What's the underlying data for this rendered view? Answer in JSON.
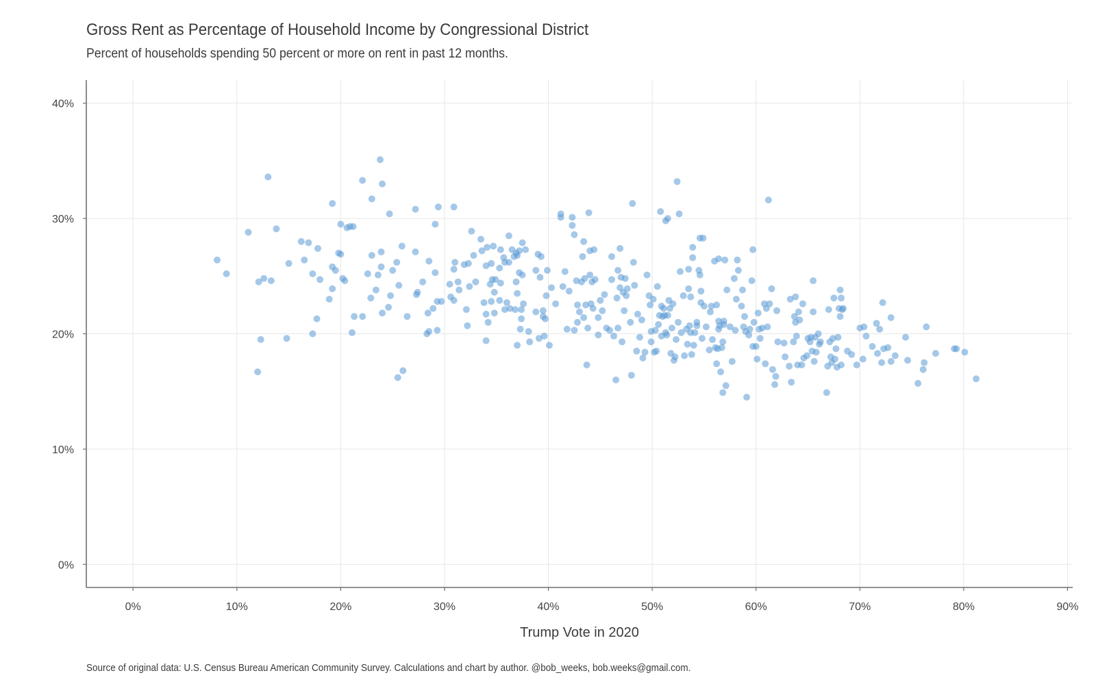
{
  "chart_data": {
    "type": "scatter",
    "title": "Gross Rent as Percentage of Household Income by Congressional District",
    "subtitle": "Percent of households spending 50 percent or more on rent in past 12 months.",
    "xlabel": "Trump Vote in 2020",
    "ylabel": "",
    "caption": "Source of original data: U.S. Census Bureau American Community Survey. Calculations and chart by author. @bob_weeks, bob.weeks@gmail.com.",
    "xlim": [
      -4.5,
      90.5
    ],
    "ylim": [
      -2,
      42
    ],
    "x_ticks": [
      0,
      10,
      20,
      30,
      40,
      50,
      60,
      70,
      80,
      90
    ],
    "x_tick_labels": [
      "0%",
      "10%",
      "20%",
      "30%",
      "40%",
      "50%",
      "60%",
      "70%",
      "80%",
      "90%"
    ],
    "y_ticks": [
      0,
      10,
      20,
      30,
      40
    ],
    "y_tick_labels": [
      "0%",
      "10%",
      "20%",
      "30%",
      "40%"
    ],
    "grid": true,
    "point_color": "#5b9bd5",
    "points": [
      [
        8.1,
        26.4
      ],
      [
        9.0,
        25.2
      ],
      [
        11.1,
        28.8
      ],
      [
        12.0,
        16.7
      ],
      [
        12.3,
        19.5
      ],
      [
        12.1,
        24.5
      ],
      [
        12.6,
        24.8
      ],
      [
        13.0,
        33.6
      ],
      [
        13.3,
        24.6
      ],
      [
        13.8,
        29.1
      ],
      [
        14.8,
        19.6
      ],
      [
        15.0,
        26.1
      ],
      [
        16.2,
        28.0
      ],
      [
        16.5,
        26.4
      ],
      [
        16.9,
        27.9
      ],
      [
        17.3,
        25.2
      ],
      [
        17.3,
        20.0
      ],
      [
        17.7,
        21.3
      ],
      [
        17.8,
        27.4
      ],
      [
        18.0,
        24.7
      ],
      [
        18.9,
        23.0
      ],
      [
        19.2,
        31.3
      ],
      [
        19.2,
        23.9
      ],
      [
        19.2,
        25.8
      ],
      [
        19.5,
        25.5
      ],
      [
        19.8,
        27.0
      ],
      [
        20.0,
        29.5
      ],
      [
        20.0,
        26.9
      ],
      [
        20.2,
        24.8
      ],
      [
        20.4,
        24.6
      ],
      [
        20.6,
        29.2
      ],
      [
        20.9,
        29.3
      ],
      [
        21.2,
        29.3
      ],
      [
        21.1,
        20.1
      ],
      [
        21.3,
        21.5
      ],
      [
        22.1,
        33.3
      ],
      [
        22.1,
        21.5
      ],
      [
        22.6,
        25.2
      ],
      [
        22.9,
        23.1
      ],
      [
        23.0,
        31.7
      ],
      [
        23.0,
        26.8
      ],
      [
        23.4,
        23.8
      ],
      [
        23.6,
        25.1
      ],
      [
        23.8,
        35.1
      ],
      [
        23.9,
        27.1
      ],
      [
        23.9,
        25.8
      ],
      [
        24.0,
        21.8
      ],
      [
        24.0,
        33.0
      ],
      [
        24.6,
        22.3
      ],
      [
        24.7,
        30.4
      ],
      [
        24.8,
        23.3
      ],
      [
        25.0,
        25.5
      ],
      [
        25.4,
        26.2
      ],
      [
        25.6,
        24.2
      ],
      [
        25.5,
        16.2
      ],
      [
        25.9,
        27.6
      ],
      [
        26.0,
        16.8
      ],
      [
        26.4,
        21.5
      ],
      [
        27.2,
        27.1
      ],
      [
        27.2,
        30.8
      ],
      [
        27.3,
        23.4
      ],
      [
        27.4,
        23.6
      ],
      [
        27.9,
        24.5
      ],
      [
        28.3,
        20.0
      ],
      [
        28.4,
        21.8
      ],
      [
        28.5,
        20.2
      ],
      [
        28.5,
        26.3
      ],
      [
        28.9,
        22.2
      ],
      [
        29.1,
        29.5
      ],
      [
        29.1,
        25.3
      ],
      [
        29.3,
        22.8
      ],
      [
        29.3,
        20.3
      ],
      [
        29.4,
        31.0
      ],
      [
        29.7,
        22.8
      ],
      [
        30.5,
        24.3
      ],
      [
        30.6,
        23.2
      ],
      [
        30.9,
        25.6
      ],
      [
        30.9,
        22.9
      ],
      [
        30.9,
        31.0
      ],
      [
        31.0,
        26.2
      ],
      [
        31.3,
        24.5
      ],
      [
        31.4,
        23.8
      ],
      [
        31.9,
        26.0
      ],
      [
        32.1,
        22.1
      ],
      [
        32.2,
        20.7
      ],
      [
        32.3,
        26.1
      ],
      [
        32.4,
        24.1
      ],
      [
        32.6,
        28.9
      ],
      [
        32.8,
        26.8
      ],
      [
        33.0,
        24.5
      ],
      [
        33.5,
        28.2
      ],
      [
        33.6,
        27.2
      ],
      [
        33.8,
        22.7
      ],
      [
        34.0,
        25.9
      ],
      [
        34.0,
        21.7
      ],
      [
        34.0,
        19.4
      ],
      [
        34.1,
        27.5
      ],
      [
        34.2,
        21.0
      ],
      [
        34.4,
        24.3
      ],
      [
        34.5,
        26.1
      ],
      [
        34.5,
        22.8
      ],
      [
        34.6,
        24.7
      ],
      [
        34.7,
        27.6
      ],
      [
        34.8,
        23.6
      ],
      [
        34.8,
        21.8
      ],
      [
        34.9,
        24.7
      ],
      [
        35.3,
        22.9
      ],
      [
        35.3,
        25.7
      ],
      [
        35.4,
        27.3
      ],
      [
        35.4,
        24.4
      ],
      [
        35.7,
        26.6
      ],
      [
        35.8,
        22.1
      ],
      [
        35.8,
        26.2
      ],
      [
        36.0,
        22.7
      ],
      [
        36.2,
        28.5
      ],
      [
        36.2,
        26.2
      ],
      [
        36.3,
        22.2
      ],
      [
        36.5,
        27.3
      ],
      [
        36.7,
        26.7
      ],
      [
        36.8,
        22.1
      ],
      [
        36.9,
        27.0
      ],
      [
        36.9,
        24.5
      ],
      [
        37.0,
        26.8
      ],
      [
        37.0,
        23.5
      ],
      [
        37.0,
        19.0
      ],
      [
        37.2,
        27.2
      ],
      [
        37.2,
        25.3
      ],
      [
        37.3,
        20.4
      ],
      [
        37.4,
        22.1
      ],
      [
        37.4,
        21.3
      ],
      [
        37.5,
        25.1
      ],
      [
        37.5,
        27.9
      ],
      [
        37.6,
        22.6
      ],
      [
        37.8,
        27.3
      ],
      [
        38.1,
        20.2
      ],
      [
        38.2,
        19.3
      ],
      [
        38.8,
        21.9
      ],
      [
        38.8,
        25.5
      ],
      [
        39.0,
        26.9
      ],
      [
        39.1,
        19.6
      ],
      [
        39.2,
        24.9
      ],
      [
        39.3,
        26.7
      ],
      [
        39.5,
        22.0
      ],
      [
        39.5,
        21.5
      ],
      [
        39.6,
        19.8
      ],
      [
        39.7,
        21.3
      ],
      [
        39.8,
        23.3
      ],
      [
        39.9,
        25.5
      ],
      [
        40.1,
        19.0
      ],
      [
        40.3,
        24.0
      ],
      [
        40.7,
        22.6
      ],
      [
        41.2,
        30.4
      ],
      [
        41.2,
        30.1
      ],
      [
        41.4,
        24.1
      ],
      [
        41.6,
        25.4
      ],
      [
        41.8,
        20.4
      ],
      [
        42.0,
        23.7
      ],
      [
        42.3,
        30.1
      ],
      [
        42.3,
        29.4
      ],
      [
        42.5,
        28.6
      ],
      [
        42.5,
        20.3
      ],
      [
        42.7,
        24.6
      ],
      [
        42.8,
        21.0
      ],
      [
        42.8,
        22.5
      ],
      [
        43.0,
        21.9
      ],
      [
        43.2,
        24.5
      ],
      [
        43.3,
        26.7
      ],
      [
        43.4,
        28.0
      ],
      [
        43.4,
        21.4
      ],
      [
        43.5,
        24.8
      ],
      [
        43.6,
        22.5
      ],
      [
        43.7,
        17.3
      ],
      [
        43.8,
        20.5
      ],
      [
        43.9,
        30.5
      ],
      [
        44.0,
        27.2
      ],
      [
        44.0,
        25.1
      ],
      [
        44.1,
        22.6
      ],
      [
        44.2,
        24.5
      ],
      [
        44.3,
        22.2
      ],
      [
        44.4,
        27.3
      ],
      [
        44.5,
        24.7
      ],
      [
        44.8,
        19.9
      ],
      [
        44.8,
        21.4
      ],
      [
        45.0,
        22.9
      ],
      [
        45.2,
        22.0
      ],
      [
        45.4,
        23.4
      ],
      [
        45.6,
        20.5
      ],
      [
        45.9,
        20.3
      ],
      [
        46.1,
        26.7
      ],
      [
        46.1,
        24.7
      ],
      [
        46.3,
        19.8
      ],
      [
        46.5,
        16.0
      ],
      [
        46.6,
        23.1
      ],
      [
        46.7,
        25.5
      ],
      [
        46.7,
        20.5
      ],
      [
        46.9,
        24.0
      ],
      [
        46.9,
        27.4
      ],
      [
        47.0,
        24.9
      ],
      [
        47.2,
        23.6
      ],
      [
        47.1,
        19.3
      ],
      [
        47.3,
        22.0
      ],
      [
        47.4,
        24.8
      ],
      [
        47.5,
        23.3
      ],
      [
        47.6,
        23.9
      ],
      [
        47.9,
        21.0
      ],
      [
        48.0,
        16.4
      ],
      [
        48.1,
        31.3
      ],
      [
        48.2,
        26.2
      ],
      [
        48.3,
        24.2
      ],
      [
        48.5,
        18.5
      ],
      [
        48.6,
        21.7
      ],
      [
        48.8,
        19.7
      ],
      [
        49.0,
        21.2
      ],
      [
        49.1,
        17.9
      ],
      [
        49.3,
        18.4
      ],
      [
        49.5,
        25.1
      ],
      [
        49.7,
        23.3
      ],
      [
        49.8,
        22.5
      ],
      [
        49.9,
        20.2
      ],
      [
        49.9,
        19.3
      ],
      [
        50.1,
        23.0
      ],
      [
        50.2,
        18.4
      ],
      [
        50.3,
        20.3
      ],
      [
        50.4,
        18.5
      ],
      [
        50.5,
        24.1
      ],
      [
        50.6,
        20.8
      ],
      [
        50.7,
        21.6
      ],
      [
        50.8,
        30.6
      ],
      [
        50.9,
        22.4
      ],
      [
        50.9,
        19.8
      ],
      [
        51.0,
        21.5
      ],
      [
        51.1,
        22.2
      ],
      [
        51.2,
        21.6
      ],
      [
        51.3,
        20.1
      ],
      [
        51.3,
        29.8
      ],
      [
        51.4,
        19.9
      ],
      [
        51.5,
        30.0
      ],
      [
        51.5,
        21.6
      ],
      [
        51.6,
        22.9
      ],
      [
        51.7,
        22.2
      ],
      [
        51.8,
        18.3
      ],
      [
        51.9,
        20.5
      ],
      [
        52.0,
        22.6
      ],
      [
        52.1,
        17.7
      ],
      [
        52.2,
        18.0
      ],
      [
        52.3,
        19.5
      ],
      [
        52.4,
        33.2
      ],
      [
        52.5,
        21.0
      ],
      [
        52.6,
        30.4
      ],
      [
        52.7,
        25.4
      ],
      [
        52.8,
        20.1
      ],
      [
        53.0,
        23.3
      ],
      [
        53.1,
        18.1
      ],
      [
        53.3,
        20.4
      ],
      [
        53.4,
        19.1
      ],
      [
        53.5,
        25.6
      ],
      [
        53.5,
        23.9
      ],
      [
        53.6,
        20.7
      ],
      [
        53.7,
        23.2
      ],
      [
        53.7,
        20.1
      ],
      [
        53.8,
        18.2
      ],
      [
        53.9,
        27.5
      ],
      [
        53.9,
        26.6
      ],
      [
        54.0,
        19.0
      ],
      [
        54.1,
        20.1
      ],
      [
        54.3,
        20.7
      ],
      [
        54.3,
        21.0
      ],
      [
        54.5,
        25.5
      ],
      [
        54.6,
        28.3
      ],
      [
        54.6,
        25.1
      ],
      [
        54.7,
        22.7
      ],
      [
        54.7,
        23.7
      ],
      [
        54.8,
        19.6
      ],
      [
        54.9,
        28.3
      ],
      [
        55.0,
        22.4
      ],
      [
        55.2,
        20.6
      ],
      [
        55.5,
        18.6
      ],
      [
        55.6,
        21.9
      ],
      [
        55.7,
        22.4
      ],
      [
        55.8,
        19.5
      ],
      [
        56.0,
        26.3
      ],
      [
        56.1,
        18.8
      ],
      [
        56.2,
        22.5
      ],
      [
        56.2,
        17.4
      ],
      [
        56.3,
        18.7
      ],
      [
        56.4,
        21.1
      ],
      [
        56.4,
        26.5
      ],
      [
        56.4,
        20.4
      ],
      [
        56.5,
        20.7
      ],
      [
        56.6,
        16.7
      ],
      [
        56.7,
        18.8
      ],
      [
        56.8,
        19.3
      ],
      [
        56.8,
        14.9
      ],
      [
        56.9,
        21.1
      ],
      [
        56.9,
        20.8
      ],
      [
        57.0,
        26.4
      ],
      [
        57.1,
        15.5
      ],
      [
        57.2,
        23.8
      ],
      [
        57.5,
        20.6
      ],
      [
        57.7,
        17.6
      ],
      [
        57.9,
        24.8
      ],
      [
        58.0,
        20.3
      ],
      [
        58.1,
        23.0
      ],
      [
        58.2,
        26.4
      ],
      [
        58.3,
        25.5
      ],
      [
        58.6,
        22.4
      ],
      [
        58.7,
        23.8
      ],
      [
        58.8,
        20.6
      ],
      [
        58.9,
        21.5
      ],
      [
        59.0,
        20.2
      ],
      [
        59.1,
        14.5
      ],
      [
        59.3,
        19.9
      ],
      [
        59.4,
        20.4
      ],
      [
        59.6,
        24.6
      ],
      [
        59.7,
        27.3
      ],
      [
        59.7,
        18.9
      ],
      [
        59.8,
        21.0
      ],
      [
        60.0,
        18.9
      ],
      [
        60.1,
        17.8
      ],
      [
        60.2,
        21.8
      ],
      [
        60.3,
        20.4
      ],
      [
        60.4,
        19.6
      ],
      [
        60.6,
        20.5
      ],
      [
        60.8,
        22.6
      ],
      [
        60.9,
        17.4
      ],
      [
        61.0,
        22.2
      ],
      [
        61.1,
        20.6
      ],
      [
        61.2,
        31.6
      ],
      [
        61.3,
        22.6
      ],
      [
        61.5,
        23.9
      ],
      [
        61.6,
        16.9
      ],
      [
        61.8,
        15.6
      ],
      [
        61.9,
        16.3
      ],
      [
        62.0,
        22.0
      ],
      [
        62.1,
        19.3
      ],
      [
        62.7,
        19.2
      ],
      [
        62.8,
        18.0
      ],
      [
        63.2,
        17.2
      ],
      [
        63.3,
        23.0
      ],
      [
        63.4,
        15.8
      ],
      [
        63.6,
        19.3
      ],
      [
        63.7,
        21.5
      ],
      [
        63.8,
        23.2
      ],
      [
        63.8,
        21.0
      ],
      [
        63.9,
        19.8
      ],
      [
        64.0,
        17.3
      ],
      [
        64.1,
        21.9
      ],
      [
        64.2,
        21.2
      ],
      [
        64.4,
        17.3
      ],
      [
        64.5,
        22.6
      ],
      [
        64.6,
        17.9
      ],
      [
        64.9,
        18.1
      ],
      [
        65.0,
        19.6
      ],
      [
        65.2,
        19.3
      ],
      [
        65.3,
        19.7
      ],
      [
        65.4,
        18.5
      ],
      [
        65.5,
        21.9
      ],
      [
        65.5,
        24.6
      ],
      [
        65.6,
        17.6
      ],
      [
        65.7,
        19.7
      ],
      [
        65.8,
        18.4
      ],
      [
        66.0,
        20.0
      ],
      [
        66.1,
        19.1
      ],
      [
        66.2,
        19.3
      ],
      [
        66.8,
        14.9
      ],
      [
        66.9,
        17.2
      ],
      [
        67.0,
        22.1
      ],
      [
        67.1,
        19.3
      ],
      [
        67.2,
        18.0
      ],
      [
        67.3,
        17.5
      ],
      [
        67.4,
        19.6
      ],
      [
        67.5,
        23.1
      ],
      [
        67.6,
        17.8
      ],
      [
        67.7,
        18.7
      ],
      [
        67.8,
        17.1
      ],
      [
        67.9,
        19.7
      ],
      [
        68.0,
        22.2
      ],
      [
        68.1,
        21.5
      ],
      [
        68.1,
        23.8
      ],
      [
        68.2,
        17.3
      ],
      [
        68.2,
        23.1
      ],
      [
        68.3,
        22.1
      ],
      [
        68.4,
        22.2
      ],
      [
        68.8,
        18.5
      ],
      [
        69.2,
        18.2
      ],
      [
        69.7,
        17.3
      ],
      [
        70.0,
        20.5
      ],
      [
        70.3,
        17.8
      ],
      [
        70.4,
        20.6
      ],
      [
        70.6,
        19.8
      ],
      [
        71.2,
        18.9
      ],
      [
        71.6,
        20.9
      ],
      [
        71.7,
        18.3
      ],
      [
        71.9,
        20.4
      ],
      [
        72.1,
        17.5
      ],
      [
        72.2,
        22.7
      ],
      [
        72.3,
        18.7
      ],
      [
        72.7,
        18.8
      ],
      [
        73.0,
        21.4
      ],
      [
        73.0,
        17.6
      ],
      [
        73.4,
        18.1
      ],
      [
        74.4,
        19.7
      ],
      [
        74.6,
        17.7
      ],
      [
        75.6,
        15.7
      ],
      [
        76.1,
        16.9
      ],
      [
        76.2,
        17.5
      ],
      [
        76.4,
        20.6
      ],
      [
        77.3,
        18.3
      ],
      [
        79.1,
        18.7
      ],
      [
        79.3,
        18.7
      ],
      [
        80.1,
        18.4
      ],
      [
        81.2,
        16.1
      ]
    ]
  }
}
